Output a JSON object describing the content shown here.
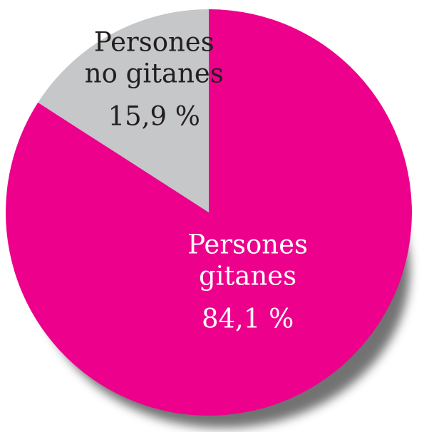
{
  "chart_data": {
    "type": "pie",
    "title": "",
    "start_angle_deg": 0,
    "direction": "clockwise",
    "shadow": true,
    "slices": [
      {
        "label_lines": [
          "Persones",
          "gitanes"
        ],
        "value_text": "84,1 %",
        "value": 84.1,
        "color": "#ec008c",
        "text_color": "#ffffff"
      },
      {
        "label_lines": [
          "Persones",
          "no gitanes"
        ],
        "value_text": "15,9 %",
        "value": 15.9,
        "color": "#c6c7c9",
        "text_color": "#231f20"
      }
    ]
  },
  "colors": {
    "shadow": "#5a5a5a",
    "edge": "#ffffff"
  }
}
